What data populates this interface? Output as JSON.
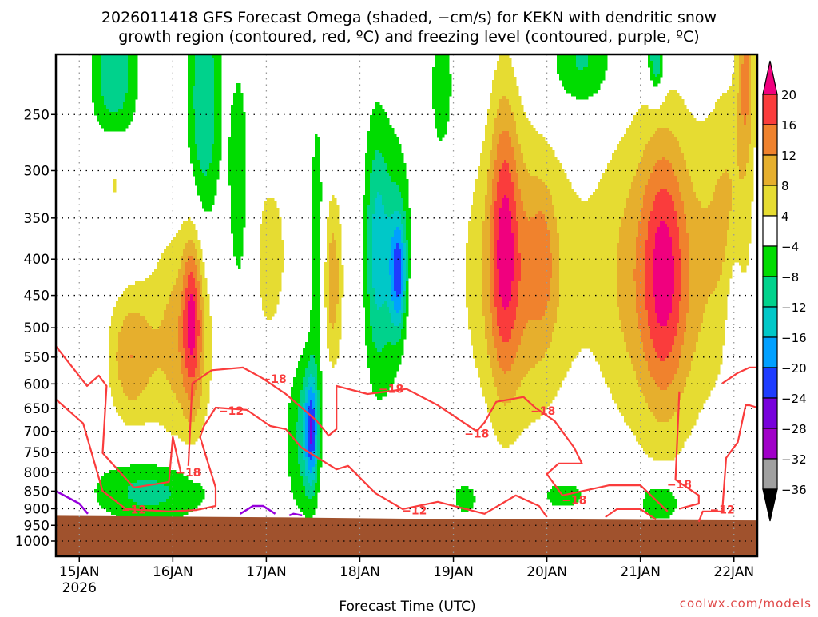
{
  "chart_data": {
    "type": "heatmap",
    "title": [
      "2026011418 GFS Forecast Omega (shaded, −cm/s) for KEKN with dendritic snow",
      "growth region (contoured, red, ºC) and freezing level (contoured, purple, ºC)"
    ],
    "xlabel": "Forecast Time (UTC)",
    "ylabel": "",
    "credit": "coolwx.com/models",
    "x_units": "forecast hours from 2026-01-14 18Z",
    "xlim": [
      0,
      180
    ],
    "ylim_hpa": [
      1050,
      206
    ],
    "y_scale": "log",
    "y_ticks": [
      250,
      300,
      350,
      400,
      450,
      500,
      550,
      600,
      650,
      700,
      750,
      800,
      850,
      900,
      950,
      1000
    ],
    "x_ticks": [
      {
        "hour": 6,
        "label": "15JAN",
        "sub": "2026"
      },
      {
        "hour": 30,
        "label": "16JAN"
      },
      {
        "hour": 54,
        "label": "17JAN"
      },
      {
        "hour": 78,
        "label": "18JAN"
      },
      {
        "hour": 102,
        "label": "19JAN"
      },
      {
        "hour": 126,
        "label": "20JAN"
      },
      {
        "hour": 150,
        "label": "21JAN"
      },
      {
        "hour": 174,
        "label": "22JAN"
      }
    ],
    "grid": true,
    "colorbar": {
      "levels": [
        "20",
        "16",
        "12",
        "8",
        "4",
        "−4",
        "−8",
        "−12",
        "−16",
        "−20",
        "−24",
        "−28",
        "−32",
        "−36"
      ],
      "level_values": [
        20,
        16,
        12,
        8,
        4,
        -4,
        -8,
        -12,
        -16,
        -20,
        -24,
        -28,
        -32,
        -36
      ],
      "colors": [
        "#f0007e",
        "#fa3c3c",
        "#f0822d",
        "#e6af2d",
        "#e6dc32",
        "#ffffff",
        "#00dc00",
        "#00d28c",
        "#00c8c8",
        "#00a0ff",
        "#1e3cff",
        "#7800dc",
        "#a000c8",
        "#a0a0a0",
        "#000000"
      ]
    },
    "terrain_color": "#a0522d",
    "surface_pressure": [
      [
        0,
        921
      ],
      [
        60,
        926
      ],
      [
        90,
        930
      ],
      [
        180,
        935
      ]
    ],
    "omega_field_approx": [
      {
        "t": 19,
        "p": 550,
        "st": 4,
        "sp": 0.15,
        "v": 11
      },
      {
        "t": 35,
        "p": 480,
        "st": 1.8,
        "sp": 0.2,
        "v": 14
      },
      {
        "t": 32,
        "p": 520,
        "st": 6,
        "sp": 0.25,
        "v": 10
      },
      {
        "t": 15,
        "p": 300,
        "st": 3,
        "sp": 0.12,
        "v": 7
      },
      {
        "t": 55,
        "p": 400,
        "st": 5,
        "sp": 0.3,
        "v": 5
      },
      {
        "t": 71,
        "p": 430,
        "st": 1.8,
        "sp": 0.2,
        "v": 11
      },
      {
        "t": 92,
        "p": 480,
        "st": 3,
        "sp": 0.2,
        "v": 5
      },
      {
        "t": 115,
        "p": 360,
        "st": 2.5,
        "sp": 0.35,
        "v": 12
      },
      {
        "t": 119,
        "p": 420,
        "st": 9,
        "sp": 0.32,
        "v": 13
      },
      {
        "t": 125,
        "p": 400,
        "st": 2,
        "sp": 0.15,
        "v": 5
      },
      {
        "t": 156,
        "p": 420,
        "st": 3.5,
        "sp": 0.3,
        "v": 10
      },
      {
        "t": 155,
        "p": 420,
        "st": 11,
        "sp": 0.36,
        "v": 13
      },
      {
        "t": 177,
        "p": 220,
        "st": 1.5,
        "sp": 0.2,
        "v": 12
      },
      {
        "t": 173,
        "p": 330,
        "st": 4,
        "sp": 0.3,
        "v": 6
      },
      {
        "t": 15,
        "p": 220,
        "st": 4,
        "sp": 0.2,
        "v": -12
      },
      {
        "t": 38,
        "p": 240,
        "st": 3,
        "sp": 0.3,
        "v": -12
      },
      {
        "t": 47,
        "p": 320,
        "st": 2,
        "sp": 0.3,
        "v": -8
      },
      {
        "t": 67,
        "p": 380,
        "st": 1.5,
        "sp": 0.35,
        "v": -7
      },
      {
        "t": 82,
        "p": 380,
        "st": 2,
        "sp": 0.3,
        "v": -8
      },
      {
        "t": 88,
        "p": 420,
        "st": 1.5,
        "sp": 0.13,
        "v": -16
      },
      {
        "t": 86,
        "p": 400,
        "st": 4,
        "sp": 0.3,
        "v": -10
      },
      {
        "t": 65.5,
        "p": 700,
        "st": 1.2,
        "sp": 0.13,
        "v": -18
      },
      {
        "t": 63,
        "p": 700,
        "st": 3,
        "sp": 0.2,
        "v": -9
      },
      {
        "t": 25,
        "p": 850,
        "st": 11,
        "sp": 0.08,
        "v": -10
      },
      {
        "t": 99,
        "p": 230,
        "st": 2,
        "sp": 0.15,
        "v": -8
      },
      {
        "t": 135,
        "p": 210,
        "st": 6,
        "sp": 0.12,
        "v": -9
      },
      {
        "t": 154,
        "p": 210,
        "st": 1.5,
        "sp": 0.08,
        "v": -14
      },
      {
        "t": 130,
        "p": 860,
        "st": 6,
        "sp": 0.05,
        "v": -6
      },
      {
        "t": 155,
        "p": 880,
        "st": 4,
        "sp": 0.05,
        "v": -10
      },
      {
        "t": 174,
        "p": 500,
        "st": 1.5,
        "sp": 0.2,
        "v": -6
      },
      {
        "t": 105,
        "p": 870,
        "st": 3,
        "sp": 0.05,
        "v": -6
      }
    ],
    "dgz_contours": [
      {
        "level": "-18",
        "points": [
          [
            0,
            531
          ],
          [
            8,
            604
          ],
          [
            11,
            584
          ],
          [
            13,
            604
          ],
          [
            12,
            751
          ],
          [
            20,
            840
          ],
          [
            29,
            825
          ],
          [
            30,
            713
          ],
          [
            32,
            798
          ]
        ]
      },
      {
        "level": "-18",
        "points": [
          [
            34,
            783
          ],
          [
            35,
            599
          ],
          [
            40,
            574
          ],
          [
            48,
            569
          ],
          [
            53,
            589
          ],
          [
            59,
            620
          ],
          [
            67,
            677
          ],
          [
            70,
            710
          ],
          [
            72,
            695
          ],
          [
            72,
            604
          ],
          [
            80,
            620
          ],
          [
            90,
            610
          ],
          [
            98,
            643
          ],
          [
            108,
            700
          ],
          [
            110,
            680
          ],
          [
            113,
            636
          ],
          [
            120,
            626
          ],
          [
            123,
            648
          ],
          [
            128,
            677
          ],
          [
            133,
            738
          ],
          [
            135,
            777
          ],
          [
            129,
            777
          ],
          [
            126,
            804
          ],
          [
            130,
            862
          ],
          [
            142,
            834
          ],
          [
            150,
            834
          ],
          [
            157,
            908
          ]
        ]
      },
      {
        "level": "-18",
        "points": [
          [
            160,
            615
          ],
          [
            159,
            819
          ],
          [
            165,
            862
          ],
          [
            165,
            885
          ],
          [
            160,
            900
          ]
        ]
      },
      {
        "level": "-18",
        "points": [
          [
            171,
            599
          ],
          [
            175,
            579
          ],
          [
            178,
            569
          ],
          [
            180,
            569
          ]
        ]
      },
      {
        "level": "-12",
        "points": [
          [
            0,
            631
          ],
          [
            7,
            682
          ],
          [
            12,
            850
          ],
          [
            18,
            901
          ],
          [
            29,
            908
          ],
          [
            36,
            904
          ],
          [
            41,
            892
          ],
          [
            41,
            840
          ],
          [
            37,
            713
          ],
          [
            38,
            688
          ],
          [
            41,
            648
          ],
          [
            49,
            653
          ],
          [
            55,
            688
          ],
          [
            59,
            695
          ],
          [
            63,
            738
          ],
          [
            72,
            792
          ],
          [
            75,
            783
          ],
          [
            82,
            856
          ],
          [
            89,
            901
          ],
          [
            98,
            880
          ],
          [
            110,
            915
          ],
          [
            118,
            862
          ],
          [
            124,
            892
          ],
          [
            126,
            925
          ]
        ]
      },
      {
        "level": "-12",
        "points": [
          [
            141,
            925
          ],
          [
            144,
            901
          ],
          [
            150,
            901
          ],
          [
            154,
            932
          ]
        ]
      },
      {
        "level": "-12",
        "points": [
          [
            165,
            939
          ],
          [
            166,
            908
          ],
          [
            171,
            908
          ],
          [
            172,
            763
          ],
          [
            175,
            725
          ],
          [
            177,
            643
          ],
          [
            178,
            643
          ],
          [
            180,
            648
          ]
        ]
      }
    ],
    "contour_labels": [
      {
        "t": 20,
        "p": 903,
        "text": "−12"
      },
      {
        "t": 34,
        "p": 800,
        "text": "−18"
      },
      {
        "t": 45,
        "p": 655,
        "text": "−12"
      },
      {
        "t": 56,
        "p": 590,
        "text": "−18"
      },
      {
        "t": 86,
        "p": 610,
        "text": "−18"
      },
      {
        "t": 92,
        "p": 905,
        "text": "−12"
      },
      {
        "t": 108,
        "p": 705,
        "text": "−18"
      },
      {
        "t": 125,
        "p": 655,
        "text": "−18"
      },
      {
        "t": 133,
        "p": 875,
        "text": "−18"
      },
      {
        "t": 160,
        "p": 832,
        "text": "−18"
      },
      {
        "t": 171,
        "p": 903,
        "text": "−12"
      }
    ],
    "freezing_contours": [
      {
        "level": "0",
        "points": [
          [
            0,
            850
          ],
          [
            6,
            885
          ],
          [
            8.2,
            915
          ]
        ]
      },
      {
        "level": "0",
        "points": [
          [
            47.3,
            915
          ],
          [
            50.6,
            892
          ],
          [
            53.2,
            892
          ],
          [
            56.3,
            915
          ]
        ]
      },
      {
        "level": "0",
        "points": [
          [
            59.9,
            920
          ],
          [
            61,
            915
          ],
          [
            63.2,
            920
          ]
        ]
      }
    ],
    "dgz_color": "#fa3c3c",
    "freezing_color": "#9600dc"
  }
}
